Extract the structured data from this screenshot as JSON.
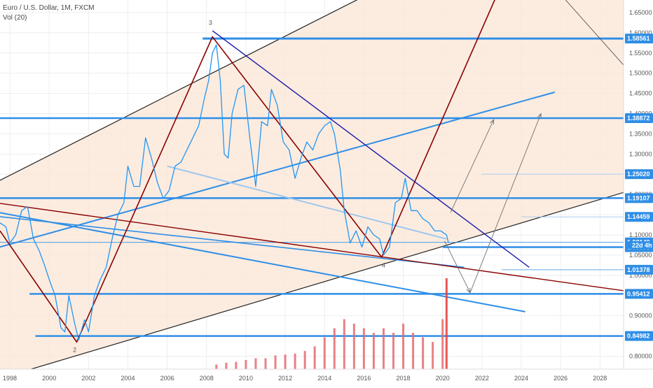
{
  "header": {
    "title": "Euro / U.S. Dollar, 1M, FXCM",
    "volume_label": "Vol (20)"
  },
  "chart_data": {
    "type": "line",
    "title": "Euro / U.S. Dollar, 1M, FXCM",
    "xlabel": "",
    "ylabel": "",
    "xlim": [
      1997.5,
      2029.2
    ],
    "ylim": [
      0.768,
      1.681
    ],
    "grid": true,
    "x_ticks": [
      1998,
      2000,
      2002,
      2004,
      2006,
      2008,
      2010,
      2012,
      2014,
      2016,
      2018,
      2020,
      2022,
      2024,
      2026,
      2028
    ],
    "y_ticks": [
      "0.80000",
      "0.90000",
      "1.00000",
      "1.05000",
      "1.10000",
      "1.15000",
      "1.20000",
      "1.25000",
      "1.30000",
      "1.35000",
      "1.40000",
      "1.45000",
      "1.50000",
      "1.55000",
      "1.60000",
      "1.65000"
    ],
    "price_tags": [
      {
        "value": "1.58561",
        "kind": "line"
      },
      {
        "value": "1.38872",
        "kind": "line"
      },
      {
        "value": "1.25020",
        "kind": "line"
      },
      {
        "value": "1.19107",
        "kind": "line"
      },
      {
        "value": "1.14459",
        "kind": "line"
      },
      {
        "value": "1.08149",
        "kind": "line"
      },
      {
        "value": "1.06976",
        "kind": "line"
      },
      {
        "value": "1.01378",
        "kind": "line"
      },
      {
        "value": "0.95412",
        "kind": "line"
      },
      {
        "value": "0.84982",
        "kind": "line"
      }
    ],
    "countdown_label": "22d 4h",
    "wave_labels": [
      "3",
      "2",
      "4"
    ],
    "series": [
      {
        "name": "Euro / U.S. Dollar",
        "x": [
          1997.5,
          1997.8,
          1998.0,
          1998.3,
          1998.6,
          1998.9,
          1999.2,
          1999.5,
          1999.8,
          2000.0,
          2000.3,
          2000.6,
          2000.8,
          2001.0,
          2001.3,
          2001.5,
          2001.8,
          2002.0,
          2002.3,
          2002.6,
          2002.9,
          2003.2,
          2003.5,
          2003.8,
          2004.0,
          2004.3,
          2004.6,
          2004.9,
          2005.2,
          2005.5,
          2005.8,
          2006.1,
          2006.4,
          2006.7,
          2007.0,
          2007.3,
          2007.6,
          2007.9,
          2008.1,
          2008.3,
          2008.5,
          2008.7,
          2008.9,
          2009.1,
          2009.3,
          2009.6,
          2009.9,
          2010.2,
          2010.5,
          2010.8,
          2011.1,
          2011.3,
          2011.6,
          2011.9,
          2012.2,
          2012.5,
          2012.8,
          2013.1,
          2013.4,
          2013.7,
          2014.0,
          2014.3,
          2014.5,
          2014.8,
          2015.0,
          2015.3,
          2015.6,
          2015.9,
          2016.2,
          2016.5,
          2016.8,
          2017.0,
          2017.3,
          2017.6,
          2017.9,
          2018.1,
          2018.4,
          2018.7,
          2019.0,
          2019.3,
          2019.6,
          2019.9,
          2020.2,
          2020.3
        ],
        "values": [
          1.13,
          1.12,
          1.08,
          1.1,
          1.16,
          1.17,
          1.09,
          1.06,
          1.02,
          0.99,
          0.95,
          0.87,
          0.86,
          0.95,
          0.88,
          0.84,
          0.89,
          0.86,
          0.95,
          0.99,
          1.02,
          1.09,
          1.15,
          1.18,
          1.27,
          1.22,
          1.22,
          1.34,
          1.29,
          1.23,
          1.19,
          1.21,
          1.27,
          1.28,
          1.31,
          1.34,
          1.37,
          1.44,
          1.48,
          1.55,
          1.57,
          1.48,
          1.3,
          1.29,
          1.4,
          1.46,
          1.47,
          1.34,
          1.22,
          1.38,
          1.37,
          1.46,
          1.42,
          1.33,
          1.31,
          1.24,
          1.29,
          1.33,
          1.31,
          1.35,
          1.37,
          1.38,
          1.35,
          1.26,
          1.16,
          1.08,
          1.11,
          1.07,
          1.12,
          1.1,
          1.09,
          1.05,
          1.07,
          1.18,
          1.19,
          1.24,
          1.16,
          1.16,
          1.14,
          1.13,
          1.11,
          1.11,
          1.1,
          1.08
        ]
      }
    ],
    "volume": {
      "x": [
        2008.5,
        2009.0,
        2009.5,
        2010.0,
        2010.5,
        2011.0,
        2011.5,
        2012.0,
        2012.5,
        2013.0,
        2013.5,
        2014.0,
        2014.5,
        2015.0,
        2015.5,
        2016.0,
        2016.5,
        2017.0,
        2017.5,
        2018.0,
        2018.5,
        2019.0,
        2019.5,
        2020.0,
        2020.2
      ],
      "values": [
        0.05,
        0.07,
        0.08,
        0.1,
        0.12,
        0.12,
        0.15,
        0.16,
        0.17,
        0.2,
        0.25,
        0.35,
        0.45,
        0.55,
        0.5,
        0.45,
        0.4,
        0.45,
        0.4,
        0.5,
        0.4,
        0.35,
        0.3,
        0.55,
        1.0
      ]
    }
  },
  "colors": {
    "price": "#2196f3",
    "hline": "#2f8ee6",
    "channel_fill": "#fbe6d6",
    "dark_red": "#8b0000",
    "navy": "#1a1aa8",
    "black": "#222222",
    "volume": "#e46b71",
    "volume_spike": "#e53935",
    "gray": "#888888"
  }
}
